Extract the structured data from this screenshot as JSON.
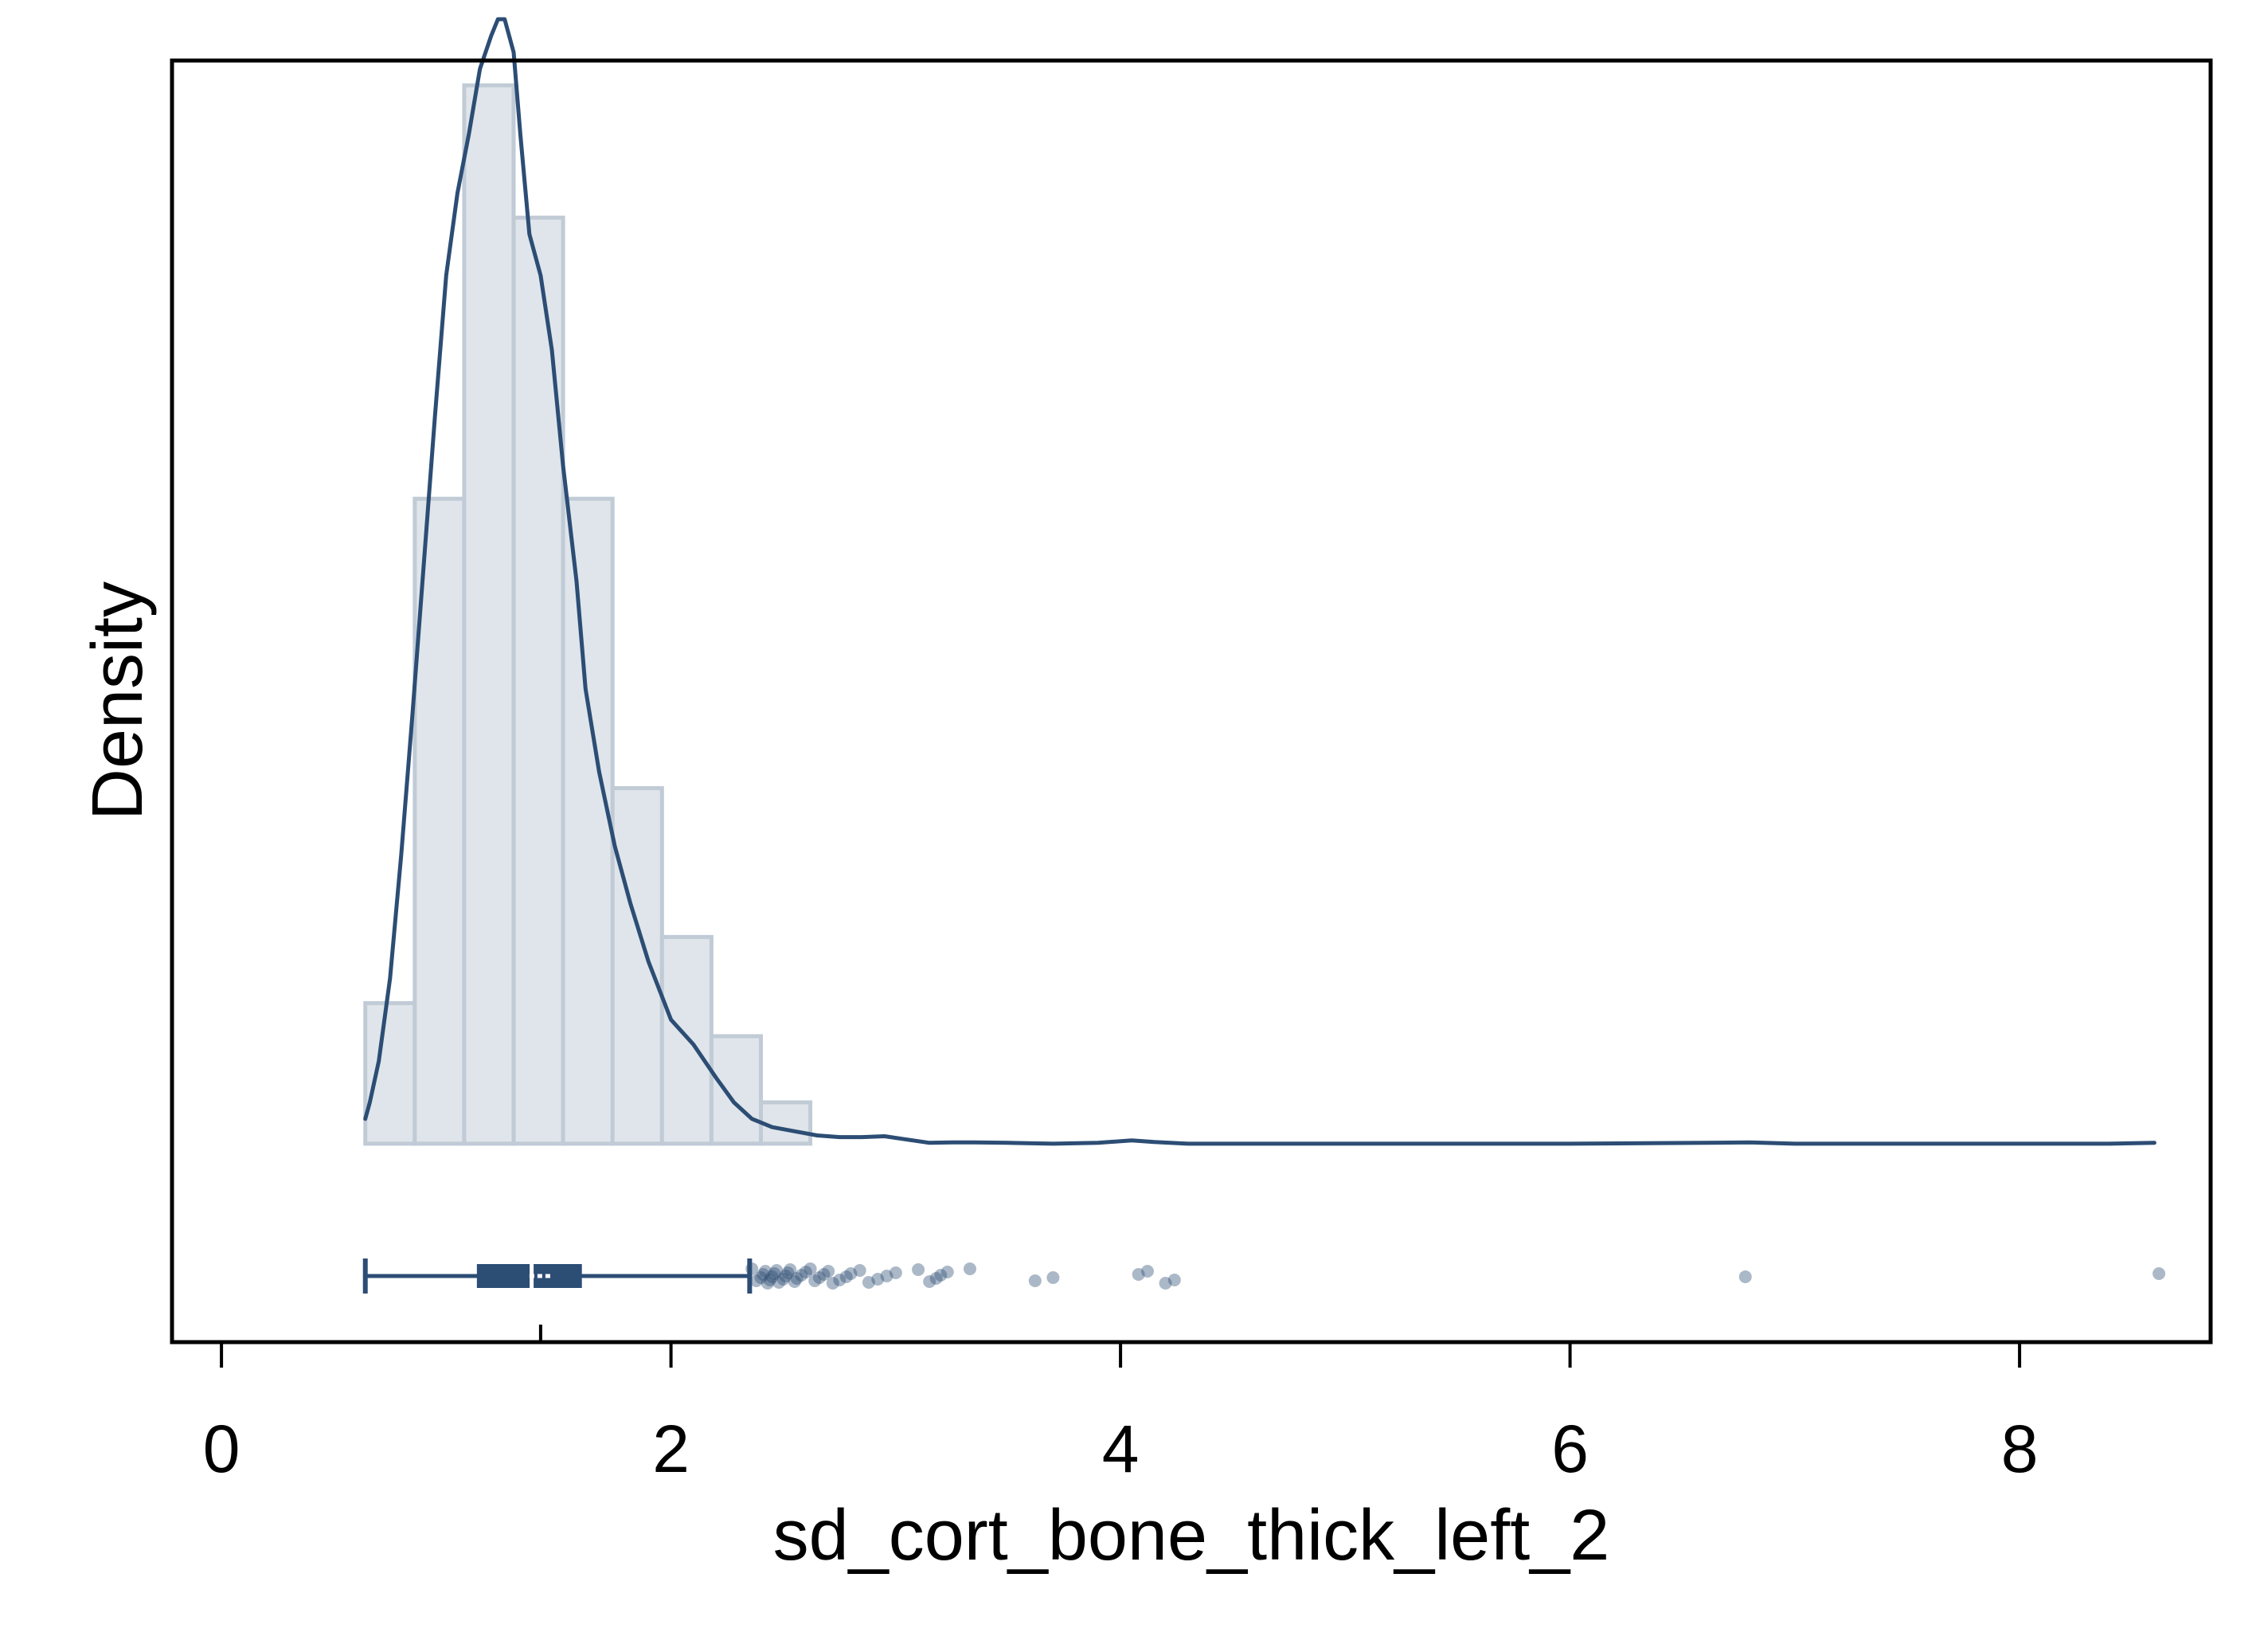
{
  "chart_data": {
    "type": "histogram",
    "xlabel": "sd_cort_bone_thick_left_2",
    "ylabel": "Density",
    "xlim": [
      -0.22,
      8.85
    ],
    "ylim": [
      -0.24,
      1.31
    ],
    "x_ticks": [
      0,
      2,
      4,
      6,
      8
    ],
    "y_tick_labels_shown": false,
    "grid": false,
    "histogram": {
      "bin_edges": [
        0.64,
        0.86,
        1.08,
        1.3,
        1.52,
        1.74,
        1.96,
        2.18,
        2.4,
        2.62
      ],
      "density": [
        0.17,
        0.78,
        1.28,
        1.12,
        0.78,
        0.43,
        0.25,
        0.13,
        0.05
      ]
    },
    "kde": {
      "x": [
        0.64,
        0.66,
        0.7,
        0.75,
        0.8,
        0.85,
        0.9,
        0.95,
        1.0,
        1.05,
        1.1,
        1.15,
        1.2,
        1.23,
        1.26,
        1.3,
        1.33,
        1.37,
        1.42,
        1.47,
        1.52,
        1.58,
        1.62,
        1.68,
        1.75,
        1.82,
        1.9,
        2.0,
        2.1,
        2.2,
        2.28,
        2.36,
        2.45,
        2.55,
        2.65,
        2.75,
        2.85,
        2.95,
        3.05,
        3.15,
        3.25,
        3.35,
        3.5,
        3.7,
        3.9,
        4.05,
        4.15,
        4.3,
        4.5,
        5.0,
        6.0,
        6.6,
        6.8,
        7.0,
        7.5,
        8.0,
        8.4,
        8.6
      ],
      "y": [
        0.03,
        0.05,
        0.1,
        0.2,
        0.35,
        0.52,
        0.7,
        0.88,
        1.05,
        1.15,
        1.22,
        1.3,
        1.34,
        1.36,
        1.36,
        1.32,
        1.22,
        1.1,
        1.05,
        0.96,
        0.82,
        0.68,
        0.55,
        0.45,
        0.36,
        0.29,
        0.22,
        0.15,
        0.12,
        0.08,
        0.05,
        0.03,
        0.02,
        0.015,
        0.01,
        0.008,
        0.008,
        0.009,
        0.005,
        0.001,
        0.0015,
        0.0015,
        0.001,
        0.0,
        0.001,
        0.004,
        0.002,
        0.0,
        0.0,
        0.0,
        0.0,
        0.001,
        0.0015,
        0.0,
        0.0,
        0.0,
        0.0,
        0.001
      ]
    },
    "boxplot": {
      "whisker_low": 0.64,
      "q1": 1.14,
      "median": 1.38,
      "q3": 1.6,
      "whisker_high": 2.35,
      "mean": 1.42,
      "outliers": [
        2.36,
        2.38,
        2.4,
        2.41,
        2.42,
        2.43,
        2.44,
        2.45,
        2.46,
        2.47,
        2.48,
        2.5,
        2.51,
        2.52,
        2.53,
        2.55,
        2.56,
        2.58,
        2.6,
        2.62,
        2.64,
        2.66,
        2.68,
        2.7,
        2.72,
        2.75,
        2.78,
        2.8,
        2.84,
        2.88,
        2.92,
        2.96,
        3.0,
        3.1,
        3.15,
        3.18,
        3.2,
        3.23,
        3.33,
        3.62,
        3.7,
        4.08,
        4.12,
        4.2,
        4.24,
        6.78,
        8.62
      ]
    },
    "colors": {
      "main": "#2c4d74",
      "bar_fill": "#dfe5ea",
      "bar_stroke": "#c0cbd6",
      "frame": "#000000"
    }
  }
}
